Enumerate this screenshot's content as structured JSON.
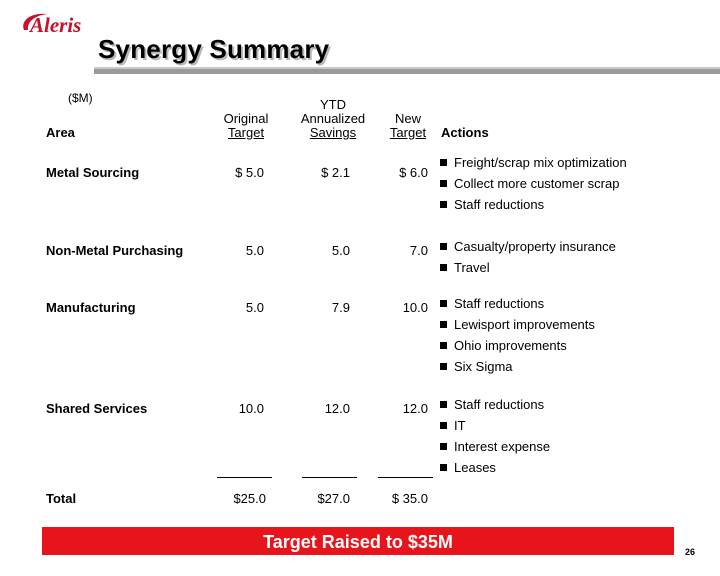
{
  "logo": {
    "text": "Aleris"
  },
  "title": "Synergy Summary",
  "units": "($M)",
  "headers": {
    "area": "Area",
    "original_line1": "Original",
    "original_line2": "Target",
    "ytd_line1": "YTD",
    "ytd_line2": "Annualized",
    "ytd_line3": "Savings",
    "new_line1": "New",
    "new_line2": "Target",
    "actions": "Actions"
  },
  "rows": [
    {
      "area": "Metal Sourcing",
      "original": "$ 5.0",
      "ytd": "$  2.1",
      "new": "$   6.0",
      "actions": [
        "Freight/scrap mix optimization",
        "Collect more customer scrap",
        "Staff reductions"
      ]
    },
    {
      "area": "Non-Metal Purchasing",
      "original": "5.0",
      "ytd": "5.0",
      "new": "7.0",
      "actions": [
        "Casualty/property insurance",
        "Travel"
      ]
    },
    {
      "area": "Manufacturing",
      "original": "5.0",
      "ytd": "7.9",
      "new": "10.0",
      "actions": [
        "Staff reductions",
        "Lewisport improvements",
        "Ohio improvements",
        "Six Sigma"
      ]
    },
    {
      "area": "Shared Services",
      "original": "10.0",
      "ytd": "12.0",
      "new": "12.0",
      "actions": [
        "Staff reductions",
        "IT",
        "Interest expense",
        "Leases"
      ]
    }
  ],
  "total": {
    "area": "Total",
    "original": "$25.0",
    "ytd": "$27.0",
    "new": "$ 35.0"
  },
  "banner": "Target Raised to $35M",
  "page_number": "26",
  "colors": {
    "banner": "#e8141b",
    "logo": "#c8102e"
  }
}
